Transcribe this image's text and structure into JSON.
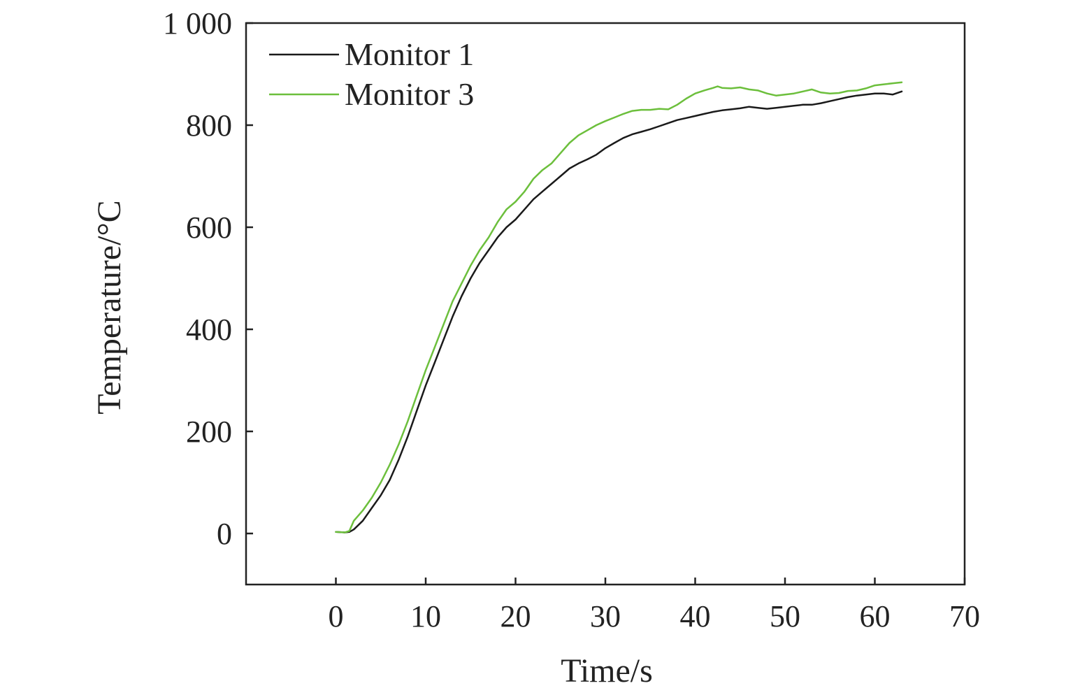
{
  "chart_data": {
    "type": "line",
    "title": "",
    "xlabel": "Time/s",
    "ylabel": "Temperature/°C",
    "xlim": [
      -10,
      70
    ],
    "ylim": [
      -100,
      1000
    ],
    "xticks": [
      0,
      10,
      20,
      30,
      40,
      50,
      60,
      70
    ],
    "yticks": [
      0,
      200,
      400,
      600,
      800,
      1000
    ],
    "ytick_labels": [
      "0",
      "200",
      "400",
      "600",
      "800",
      "1 000"
    ],
    "grid": false,
    "legend": {
      "position": "top-left"
    },
    "series": [
      {
        "name": "Monitor 1",
        "color": "#1a1a1a",
        "x": [
          0,
          1,
          1.5,
          2,
          3,
          4,
          5,
          6,
          7,
          8,
          9,
          10,
          11,
          12,
          13,
          14,
          15,
          16,
          17,
          18,
          19,
          20,
          21,
          22,
          23,
          24,
          25,
          26,
          27,
          28,
          29,
          30,
          31,
          32,
          33,
          34,
          35,
          36,
          37,
          38,
          39,
          40,
          41,
          42,
          43,
          44,
          45,
          46,
          47,
          48,
          49,
          50,
          51,
          52,
          53,
          54,
          55,
          56,
          57,
          58,
          59,
          60,
          61,
          62,
          63
        ],
        "y": [
          3,
          2,
          3,
          8,
          25,
          50,
          75,
          105,
          145,
          190,
          240,
          290,
          335,
          380,
          425,
          465,
          500,
          530,
          555,
          580,
          600,
          615,
          635,
          655,
          670,
          685,
          700,
          715,
          725,
          733,
          742,
          755,
          765,
          775,
          782,
          787,
          792,
          798,
          804,
          810,
          814,
          818,
          822,
          826,
          829,
          831,
          833,
          836,
          834,
          832,
          834,
          836,
          838,
          840,
          840,
          843,
          847,
          851,
          855,
          858,
          860,
          862,
          862,
          860,
          866
        ]
      },
      {
        "name": "Monitor 3",
        "color": "#6cbf3c",
        "x": [
          0,
          1,
          1.5,
          2,
          3,
          4,
          5,
          6,
          7,
          8,
          9,
          10,
          11,
          12,
          13,
          14,
          15,
          16,
          17,
          18,
          19,
          20,
          21,
          22,
          23,
          24,
          25,
          26,
          27,
          28,
          29,
          30,
          31,
          32,
          33,
          34,
          35,
          36,
          37,
          38,
          39,
          40,
          41,
          42,
          42.5,
          43,
          44,
          45,
          46,
          47,
          48,
          49,
          50,
          51,
          52,
          53,
          54,
          55,
          56,
          57,
          58,
          59,
          60,
          61,
          62,
          63
        ],
        "y": [
          3,
          2,
          5,
          25,
          45,
          70,
          100,
          135,
          175,
          220,
          270,
          320,
          365,
          410,
          455,
          490,
          525,
          555,
          580,
          610,
          635,
          650,
          670,
          695,
          712,
          725,
          745,
          765,
          780,
          790,
          800,
          808,
          815,
          822,
          828,
          830,
          830,
          832,
          831,
          840,
          852,
          862,
          868,
          873,
          876,
          873,
          872,
          874,
          870,
          868,
          862,
          858,
          860,
          862,
          866,
          870,
          864,
          862,
          863,
          867,
          868,
          872,
          878,
          880,
          882,
          884
        ]
      }
    ]
  }
}
